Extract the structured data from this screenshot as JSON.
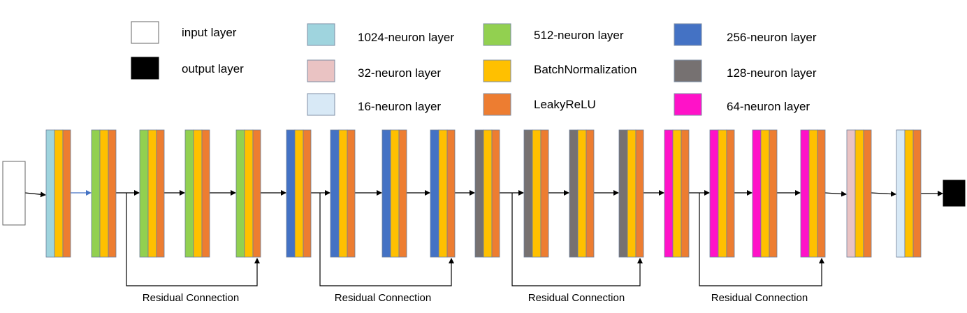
{
  "legend": [
    {
      "label": "input layer",
      "key": "input"
    },
    {
      "label": "output layer",
      "key": "output"
    },
    {
      "label": "1024-neuron layer",
      "key": "n1024"
    },
    {
      "label": "32-neuron layer",
      "key": "n32"
    },
    {
      "label": "16-neuron layer",
      "key": "n16"
    },
    {
      "label": "512-neuron layer",
      "key": "n512"
    },
    {
      "label": "BatchNormalization",
      "key": "bn"
    },
    {
      "label": "LeakyReLU",
      "key": "relu"
    },
    {
      "label": "256-neuron layer",
      "key": "n256"
    },
    {
      "label": "128-neuron layer",
      "key": "n128"
    },
    {
      "label": "64-neuron layer",
      "key": "n64"
    }
  ],
  "colors": {
    "input": "#ffffff",
    "output": "#000000",
    "n1024": "#9fd4de",
    "n32": "#eac3c3",
    "n16": "#d8e9f6",
    "n512": "#92d050",
    "bn": "#ffc000",
    "relu": "#ed7d31",
    "n256": "#4472c4",
    "n128": "#767171",
    "n64": "#ff12c8",
    "arrow": "#000000",
    "first_arrow": "#4472c4"
  },
  "blocks": [
    "n1024",
    "n512",
    "n512",
    "n512",
    "n512",
    "n256",
    "n256",
    "n256",
    "n256",
    "n128",
    "n128",
    "n128",
    "n128",
    "n64",
    "n64",
    "n64",
    "n64",
    "n32",
    "n16"
  ],
  "residual_connections": [
    {
      "label": "Residual Connection"
    },
    {
      "label": "Residual Connection"
    },
    {
      "label": "Residual Connection"
    },
    {
      "label": "Residual Connection"
    }
  ]
}
